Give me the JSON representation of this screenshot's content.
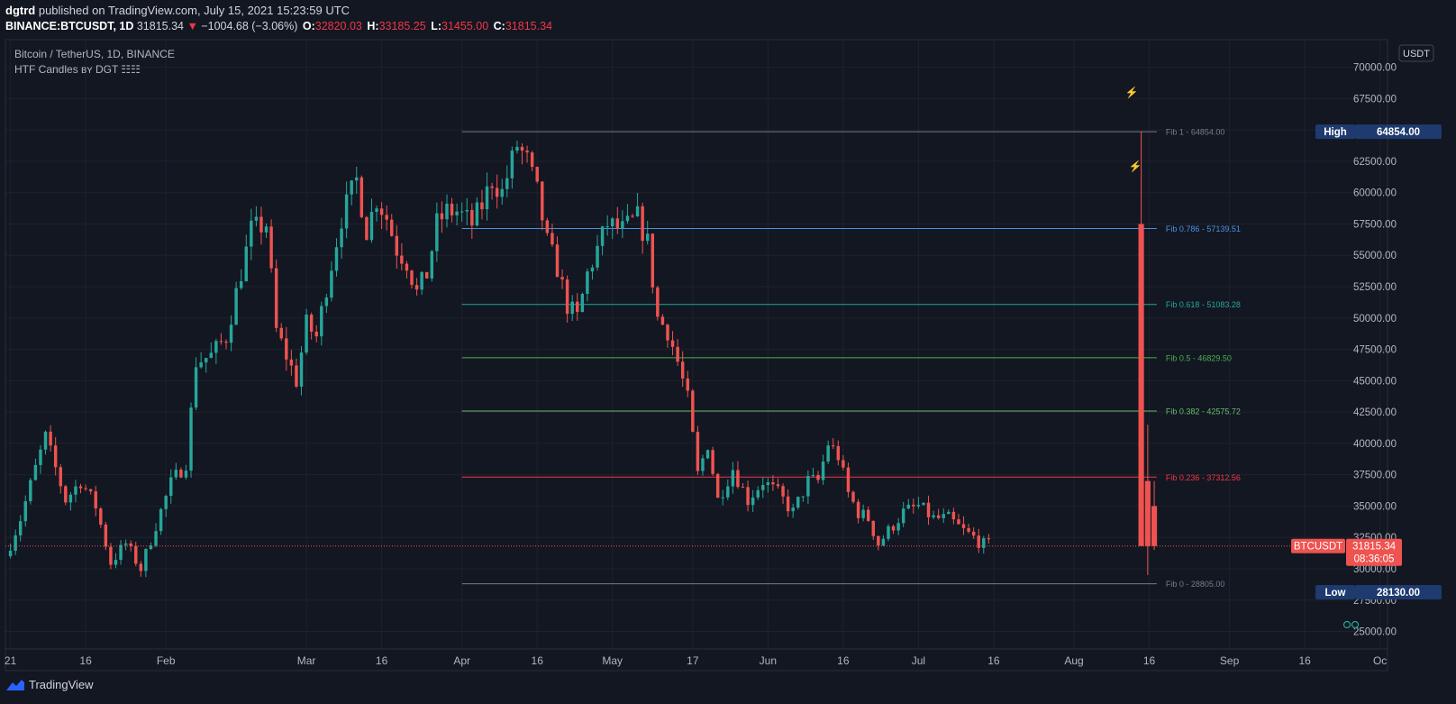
{
  "header": {
    "publisher": "dgtrd",
    "published_text": "published on TradingView.com, July 15, 2021 15:23:59 UTC",
    "symbol_line": "BINANCE:BTCUSDT, 1D",
    "last": "31815.34",
    "change_arrow": "▼",
    "change": "−1004.68 (−3.06%)",
    "o_label": "O:",
    "o_val": "32820.03",
    "h_label": "H:",
    "h_val": "33185.25",
    "l_label": "L:",
    "l_val": "31455.00",
    "c_label": "C:",
    "c_val": "31815.34"
  },
  "legend": {
    "title": "Bitcoin / TetherUS, 1D, BINANCE",
    "indicator": "HTF Candles ʙʏ DGT ☷☷"
  },
  "footer": {
    "brand": "TradingView"
  },
  "colors": {
    "bg": "#131722",
    "up": "#26a69a",
    "down": "#ef5350",
    "grid": "#1f2431",
    "text": "#d1d4dc"
  },
  "chart_data": {
    "type": "candlestick",
    "title": "Bitcoin / TetherUS, 1D, BINANCE",
    "currency_badge": "USDT",
    "y_ticks": [
      25000,
      27500,
      30000,
      32500,
      35000,
      37500,
      40000,
      42500,
      45000,
      47500,
      50000,
      52500,
      55000,
      57500,
      60000,
      62500,
      65000,
      67500,
      70000
    ],
    "y_tick_labels": [
      "25000.00",
      "27500.00",
      "30000.00",
      "32500.00",
      "35000.00",
      "37500.00",
      "40000.00",
      "42500.00",
      "45000.00",
      "47500.00",
      "50000.00",
      "52500.00",
      "55000.00",
      "57500.00",
      "60000.00",
      "62500.00",
      "65000.00",
      "67500.00",
      "70000.00"
    ],
    "ylim": [
      23600,
      72200
    ],
    "x_ticks": [
      {
        "label": "21",
        "day": 0
      },
      {
        "label": "16",
        "day": 15
      },
      {
        "label": "Feb",
        "day": 31
      },
      {
        "label": "Mar",
        "day": 59
      },
      {
        "label": "16",
        "day": 74
      },
      {
        "label": "Apr",
        "day": 90
      },
      {
        "label": "16",
        "day": 105
      },
      {
        "label": "May",
        "day": 120
      },
      {
        "label": "17",
        "day": 136
      },
      {
        "label": "Jun",
        "day": 151
      },
      {
        "label": "16",
        "day": 166
      },
      {
        "label": "Jul",
        "day": 181
      },
      {
        "label": "16",
        "day": 196
      },
      {
        "label": "Aug",
        "day": 212
      },
      {
        "label": "16",
        "day": 227
      },
      {
        "label": "Sep",
        "day": 243
      },
      {
        "label": "16",
        "day": 258
      },
      {
        "label": "Oc",
        "day": 273
      }
    ],
    "xlim_days": [
      -1,
      274.5
    ],
    "candle_anchors": [
      [
        0,
        31000
      ],
      [
        3,
        34000
      ],
      [
        6,
        38000
      ],
      [
        8,
        40500
      ],
      [
        12,
        35500
      ],
      [
        15,
        37000
      ],
      [
        18,
        35000
      ],
      [
        21,
        30500
      ],
      [
        24,
        32000
      ],
      [
        27,
        30000
      ],
      [
        30,
        33500
      ],
      [
        33,
        36800
      ],
      [
        36,
        38500
      ],
      [
        38,
        46500
      ],
      [
        41,
        47000
      ],
      [
        44,
        48500
      ],
      [
        46,
        52000
      ],
      [
        49,
        57000
      ],
      [
        52,
        57500
      ],
      [
        54,
        49000
      ],
      [
        56,
        47000
      ],
      [
        58,
        45000
      ],
      [
        60,
        49500
      ],
      [
        62,
        48500
      ],
      [
        64,
        52500
      ],
      [
        67,
        58000
      ],
      [
        70,
        61000
      ],
      [
        72,
        57000
      ],
      [
        74,
        59500
      ],
      [
        76,
        58000
      ],
      [
        78,
        55500
      ],
      [
        80,
        54500
      ],
      [
        82,
        52000
      ],
      [
        84,
        53500
      ],
      [
        86,
        57500
      ],
      [
        88,
        58500
      ],
      [
        90,
        58500
      ],
      [
        93,
        57500
      ],
      [
        95,
        59000
      ],
      [
        97,
        61000
      ],
      [
        99,
        60000
      ],
      [
        102,
        63800
      ],
      [
        104,
        62500
      ],
      [
        106,
        60000
      ],
      [
        108,
        56000
      ],
      [
        110,
        54000
      ],
      [
        112,
        51000
      ],
      [
        114,
        50000
      ],
      [
        116,
        53500
      ],
      [
        118,
        55500
      ],
      [
        120,
        57500
      ],
      [
        123,
        57000
      ],
      [
        126,
        58000
      ],
      [
        128,
        56000
      ],
      [
        130,
        50000
      ],
      [
        132,
        49000
      ],
      [
        134,
        46500
      ],
      [
        136,
        43500
      ],
      [
        138,
        37500
      ],
      [
        140,
        40000
      ],
      [
        142,
        35500
      ],
      [
        145,
        38000
      ],
      [
        148,
        35500
      ],
      [
        151,
        37000
      ],
      [
        154,
        36000
      ],
      [
        157,
        34500
      ],
      [
        160,
        37000
      ],
      [
        162,
        37000
      ],
      [
        164,
        40000
      ],
      [
        166,
        39000
      ],
      [
        168,
        36000
      ],
      [
        170,
        34500
      ],
      [
        172,
        34000
      ],
      [
        174,
        32000
      ],
      [
        177,
        33500
      ],
      [
        179,
        34500
      ],
      [
        182,
        35000
      ],
      [
        185,
        34000
      ],
      [
        188,
        34000
      ],
      [
        191,
        33000
      ],
      [
        193,
        32500
      ],
      [
        195,
        31900
      ]
    ],
    "candle_seed": 7,
    "candle_last_day": 195,
    "htf_candles": [
      {
        "day": 225.4,
        "open": 57500,
        "high": 64854,
        "low": 47000,
        "close": 31815,
        "width_days": 0.4
      },
      {
        "day": 226.7,
        "open": 37000,
        "high": 41500,
        "low": 29500,
        "close": 31815,
        "width_days": 0.4
      },
      {
        "day": 228.0,
        "open": 35000,
        "high": 37000,
        "low": 31500,
        "close": 31815,
        "width_days": 0.4
      }
    ],
    "fib_levels": [
      {
        "label": "Fib 1   - 64854.00",
        "value": 64854.0,
        "color": "#787b86"
      },
      {
        "label": "Fib 0.786 - 57139.51",
        "value": 57139.51,
        "color": "#4a90e2"
      },
      {
        "label": "Fib 0.618 - 51083.28",
        "value": 51083.28,
        "color": "#26a69a"
      },
      {
        "label": "Fib 0.5   - 46829.50",
        "value": 46829.5,
        "color": "#4caf50"
      },
      {
        "label": "Fib 0.382 - 42575.72",
        "value": 42575.72,
        "color": "#66bb6a"
      },
      {
        "label": "Fib 0.236 - 37312.56",
        "value": 37312.56,
        "color": "#f23645"
      },
      {
        "label": "Fib 0   - 28805.00",
        "value": 28805.0,
        "color": "#787b86"
      }
    ],
    "fib_start_day": 90,
    "fib_end_day": 228.5,
    "price_badges": [
      {
        "name": "High",
        "text": "High",
        "value_text": "64854.00",
        "value": 64854.0,
        "color": "#1e3a6e"
      },
      {
        "name": "Low",
        "text": "Low",
        "value_text": "28130.00",
        "value": 28130.0,
        "color": "#1e3a6e"
      }
    ],
    "last_price": {
      "symbol": "BTCUSDT",
      "value_text": "31815.34",
      "countdown": "08:36:05",
      "value": 31815.34,
      "color": "#ef5350"
    },
    "markers": [
      {
        "glyph": "⚡",
        "day": 223.5,
        "price": 67700
      },
      {
        "glyph": "⚡",
        "day": 224.2,
        "price": 61800
      }
    ]
  }
}
